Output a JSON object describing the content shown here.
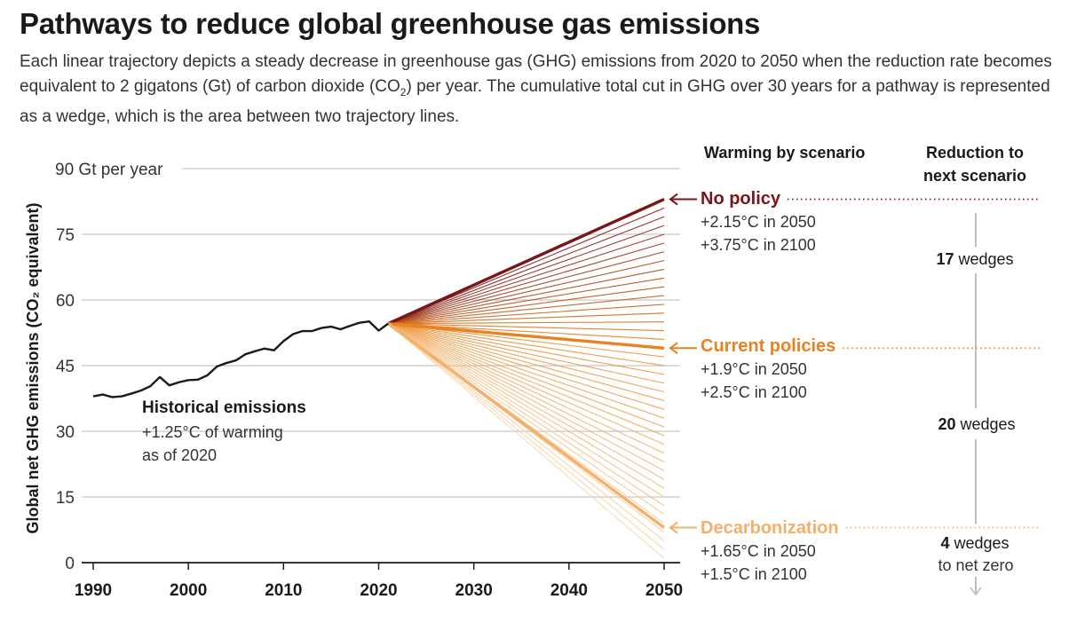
{
  "title": "Pathways to reduce global greenhouse gas emissions",
  "subtitle": {
    "part1": "Each linear trajectory depicts a steady decrease in greenhouse gas (GHG) emissions from 2020 to 2050 when the reduction rate becomes equivalent to 2 gigatons (Gt) of carbon dioxide (CO",
    "sub": "2",
    "part2": ") per year. The cumulative total cut in GHG over 30 years for a pathway is represented as a wedge, which is the area between two trajectory lines."
  },
  "chart_data": {
    "type": "line",
    "ylabel": "Global net GHG emissions (CO₂ equivalent)",
    "ylim": [
      0,
      90
    ],
    "xlim": [
      1990,
      2050
    ],
    "grid": true,
    "y_ticks": [
      {
        "value": 90,
        "label": "90 Gt per year"
      },
      {
        "value": 75,
        "label": "75"
      },
      {
        "value": 60,
        "label": "60"
      },
      {
        "value": 45,
        "label": "45"
      },
      {
        "value": 30,
        "label": "30"
      },
      {
        "value": 15,
        "label": "15"
      },
      {
        "value": 0,
        "label": "0"
      }
    ],
    "x_ticks": [
      "1990",
      "2000",
      "2010",
      "2020",
      "2030",
      "2040",
      "2050"
    ],
    "historical": {
      "x": [
        1990,
        1991,
        1992,
        1993,
        1994,
        1995,
        1996,
        1997,
        1998,
        1999,
        2000,
        2001,
        2002,
        2003,
        2004,
        2005,
        2006,
        2007,
        2008,
        2009,
        2010,
        2011,
        2012,
        2013,
        2014,
        2015,
        2016,
        2017,
        2018,
        2019,
        2020,
        2021
      ],
      "y": [
        38,
        38.4,
        37.8,
        38,
        38.6,
        39.3,
        40.3,
        42.4,
        40.5,
        41.2,
        41.7,
        41.8,
        42.8,
        44.8,
        45.6,
        46.2,
        47.6,
        48.3,
        48.9,
        48.5,
        50.6,
        52.2,
        52.9,
        52.9,
        53.6,
        53.9,
        53.3,
        54.1,
        54.8,
        55.1,
        53.0,
        54.6
      ]
    },
    "pathways": {
      "start_year": 2021,
      "start_value": 54.6,
      "end_year": 2050,
      "end_values_2050": [
        83,
        81,
        79,
        77,
        75,
        73,
        71,
        69,
        67,
        65,
        63,
        61,
        59,
        57,
        55,
        53,
        51,
        49,
        47,
        45,
        43,
        41,
        39,
        37,
        35,
        33,
        31,
        29,
        27,
        25,
        23,
        21,
        19,
        17,
        15,
        13,
        11,
        9,
        7,
        5,
        3,
        1
      ]
    },
    "series": [
      {
        "name": "No policy",
        "value_2050": 83,
        "color": "#7a1518",
        "warming_2050": "+2.15°C in 2050",
        "warming_2100": "+3.75°C in 2100"
      },
      {
        "name": "Current policies",
        "value_2050": 49,
        "color": "#e8821e",
        "warming_2050": "+1.9°C in 2050",
        "warming_2100": "+2.5°C in 2100"
      },
      {
        "name": "Decarbonization",
        "value_2050": 8,
        "color": "#f3b06b",
        "warming_2050": "+1.65°C in 2050",
        "warming_2100": "+1.5°C in 2100"
      }
    ],
    "annotations": {
      "historical_title": "Historical emissions",
      "historical_line1": "+1.25°C of warming",
      "historical_line2": "as of 2020",
      "warming_header": "Warming by scenario",
      "reduction_header_line1": "Reduction to",
      "reduction_header_line2": "next scenario",
      "wedges_1_number": "17",
      "wedges_1_text": " wedges",
      "wedges_2_number": "20",
      "wedges_2_text": " wedges",
      "wedges_3_number": "4",
      "wedges_3_text": " wedges",
      "wedges_3_line2": "to net zero"
    }
  },
  "colors": {
    "no_policy": "#7a1518",
    "current_policies": "#e8821e",
    "decarbonization": "#f3b06b",
    "historical": "#1a1a1a",
    "grid": "#c8c8c8",
    "reduction_axis": "#bdbdbd"
  }
}
